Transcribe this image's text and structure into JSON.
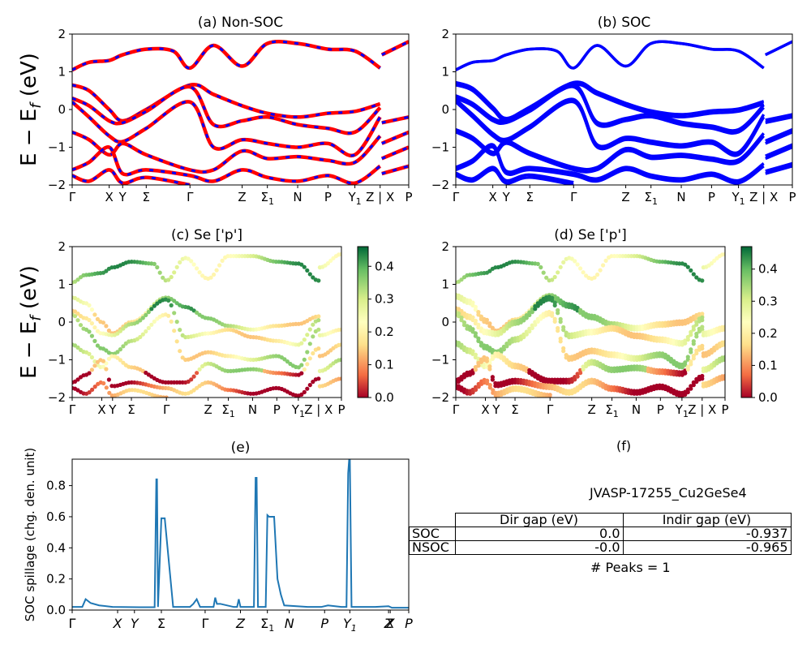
{
  "figure": {
    "ylabel_math": {
      "main": "E − E",
      "sub": "f",
      "unit": " (eV)"
    },
    "ylabel_spillage": "SOC spillage (chg. den. unit)",
    "colorbar_ticks": [
      "0.0",
      "0.1",
      "0.2",
      "0.3",
      "0.4"
    ],
    "colors": {
      "soc_blue": "#0000ff",
      "nonsoc_red": "#ff0000",
      "spillage_line": "#1f77b4"
    }
  },
  "chart_data": [
    {
      "type": "line",
      "title": "(a) Non-SOC",
      "ylim": [
        -2,
        2
      ],
      "yticks": [
        "2",
        "1",
        "0",
        "−1",
        "−2"
      ],
      "x_ticks": [
        "Γ",
        "X",
        "Y",
        "Σ",
        "Γ",
        "Z",
        "Σ1",
        "N",
        "P",
        "Y1",
        "Z | X",
        "P"
      ],
      "x_tick_pos": [
        0,
        0.11,
        0.15,
        0.22,
        0.35,
        0.505,
        0.58,
        0.67,
        0.76,
        0.84,
        0.915,
        1.0
      ],
      "series": [
        {
          "values": [
            [
              0,
              1.05
            ],
            [
              0.05,
              1.25
            ],
            [
              0.11,
              1.3
            ],
            [
              0.15,
              1.45
            ],
            [
              0.22,
              1.6
            ],
            [
              0.3,
              1.55
            ],
            [
              0.35,
              1.1
            ],
            [
              0.42,
              1.7
            ],
            [
              0.505,
              1.15
            ],
            [
              0.58,
              1.75
            ],
            [
              0.67,
              1.75
            ],
            [
              0.76,
              1.6
            ],
            [
              0.84,
              1.55
            ],
            [
              0.915,
              1.1
            ]
          ]
        },
        {
          "values": [
            [
              0.92,
              1.45
            ],
            [
              1.0,
              1.8
            ]
          ]
        },
        {
          "values": [
            [
              0,
              0.65
            ],
            [
              0.05,
              0.5
            ],
            [
              0.11,
              0.0
            ],
            [
              0.15,
              -0.3
            ],
            [
              0.22,
              0.0
            ],
            [
              0.35,
              0.65
            ],
            [
              0.42,
              0.4
            ],
            [
              0.505,
              0.1
            ],
            [
              0.58,
              -0.1
            ],
            [
              0.67,
              -0.2
            ],
            [
              0.76,
              -0.1
            ],
            [
              0.84,
              -0.05
            ],
            [
              0.915,
              0.15
            ]
          ]
        },
        {
          "values": [
            [
              0,
              0.3
            ],
            [
              0.05,
              0.1
            ],
            [
              0.11,
              -0.3
            ],
            [
              0.15,
              -0.35
            ],
            [
              0.22,
              -0.05
            ],
            [
              0.35,
              0.6
            ],
            [
              0.42,
              -0.4
            ],
            [
              0.505,
              -0.3
            ],
            [
              0.58,
              -0.2
            ],
            [
              0.67,
              -0.4
            ],
            [
              0.76,
              -0.5
            ],
            [
              0.84,
              -0.6
            ],
            [
              0.915,
              0.05
            ]
          ]
        },
        {
          "values": [
            [
              0,
              0.2
            ],
            [
              0.05,
              -0.2
            ],
            [
              0.11,
              -0.7
            ],
            [
              0.15,
              -0.85
            ],
            [
              0.22,
              -0.5
            ],
            [
              0.35,
              0.2
            ],
            [
              0.42,
              -1.0
            ],
            [
              0.505,
              -0.8
            ],
            [
              0.58,
              -0.9
            ],
            [
              0.67,
              -1.0
            ],
            [
              0.76,
              -0.9
            ],
            [
              0.84,
              -1.2
            ],
            [
              0.915,
              -0.2
            ]
          ]
        },
        {
          "values": [
            [
              0,
              -0.6
            ],
            [
              0.05,
              -0.8
            ],
            [
              0.11,
              -1.2
            ],
            [
              0.15,
              -0.9
            ],
            [
              0.22,
              -1.2
            ],
            [
              0.35,
              -1.6
            ],
            [
              0.42,
              -1.6
            ],
            [
              0.505,
              -1.1
            ],
            [
              0.58,
              -1.3
            ],
            [
              0.67,
              -1.25
            ],
            [
              0.76,
              -1.35
            ],
            [
              0.84,
              -1.4
            ],
            [
              0.915,
              -0.7
            ]
          ]
        },
        {
          "values": [
            [
              0,
              -1.6
            ],
            [
              0.05,
              -1.4
            ],
            [
              0.11,
              -1.0
            ],
            [
              0.15,
              -1.7
            ],
            [
              0.22,
              -1.6
            ],
            [
              0.35,
              -1.75
            ],
            [
              0.42,
              -1.9
            ],
            [
              0.505,
              -1.6
            ],
            [
              0.58,
              -1.8
            ],
            [
              0.67,
              -1.9
            ],
            [
              0.76,
              -1.75
            ],
            [
              0.84,
              -1.95
            ],
            [
              0.915,
              -1.5
            ]
          ]
        },
        {
          "values": [
            [
              0,
              -1.75
            ],
            [
              0.05,
              -1.9
            ],
            [
              0.11,
              -1.6
            ],
            [
              0.15,
              -1.95
            ],
            [
              0.22,
              -1.8
            ],
            [
              0.35,
              -2.0
            ]
          ]
        },
        {
          "values": [
            [
              0.92,
              -0.35
            ],
            [
              1.0,
              -0.2
            ]
          ]
        },
        {
          "values": [
            [
              0.92,
              -0.9
            ],
            [
              1.0,
              -0.6
            ]
          ]
        },
        {
          "values": [
            [
              0.92,
              -1.3
            ],
            [
              1.0,
              -1.0
            ]
          ]
        },
        {
          "values": [
            [
              0.92,
              -1.7
            ],
            [
              1.0,
              -1.5
            ]
          ]
        }
      ]
    },
    {
      "type": "line",
      "title": "(b) SOC",
      "ylim": [
        -2,
        2
      ],
      "yticks": [
        "2",
        "1",
        "0",
        "−1",
        "−2"
      ],
      "x_ticks": [
        "Γ",
        "X",
        "Y",
        "Σ",
        "Γ",
        "Z",
        "Σ1",
        "N",
        "P",
        "Y1",
        "Z | X",
        "P"
      ],
      "x_tick_pos": [
        0,
        0.11,
        0.15,
        0.22,
        0.35,
        0.505,
        0.58,
        0.67,
        0.76,
        0.84,
        0.915,
        1.0
      ]
    },
    {
      "type": "scatter",
      "title": "(c)  Se ['p']",
      "ylim": [
        -2,
        2
      ],
      "yticks": [
        "2",
        "1",
        "0",
        "−1",
        "−2"
      ],
      "x_ticks": [
        "Γ",
        "X",
        "Y",
        "Σ",
        "Γ",
        "Z",
        "Σ1",
        "N",
        "P",
        "Y1",
        "Z | X",
        "P"
      ],
      "x_tick_pos": [
        0,
        0.11,
        0.15,
        0.22,
        0.35,
        0.505,
        0.58,
        0.67,
        0.76,
        0.84,
        0.915,
        1.0
      ],
      "colorbar": {
        "min": 0.0,
        "max": 0.46,
        "ticks": [
          0.0,
          0.1,
          0.2,
          0.3,
          0.4
        ],
        "colormap": "RdYlGn"
      }
    },
    {
      "type": "scatter",
      "title": "(d) Se ['p']",
      "ylim": [
        -2,
        2
      ],
      "yticks": [
        "2",
        "1",
        "0",
        "−1",
        "−2"
      ],
      "x_ticks": [
        "Γ",
        "X",
        "Y",
        "Σ",
        "Γ",
        "Z",
        "Σ1",
        "N",
        "P",
        "Y1",
        "Z | X",
        "P"
      ],
      "x_tick_pos": [
        0,
        0.11,
        0.15,
        0.22,
        0.35,
        0.505,
        0.58,
        0.67,
        0.76,
        0.84,
        0.915,
        1.0
      ],
      "colorbar": {
        "min": 0.0,
        "max": 0.47,
        "ticks": [
          0.0,
          0.1,
          0.2,
          0.3,
          0.4
        ],
        "colormap": "RdYlGn"
      }
    },
    {
      "type": "line",
      "title": "(e)",
      "ylabel": "SOC spillage (chg. den. unit)",
      "ylim": [
        0,
        0.97
      ],
      "yticks": [
        "0.0",
        "0.2",
        "0.4",
        "0.6",
        "0.8"
      ],
      "ytick_vals": [
        0,
        0.2,
        0.4,
        0.6,
        0.8
      ],
      "x_ticks": [
        "Γ",
        "X",
        "Y",
        "Σ",
        "Γ",
        "Z",
        "Σ1",
        "N",
        "P",
        "Y1",
        "Z",
        "X",
        "P"
      ],
      "x_tick_pos": [
        0,
        0.135,
        0.185,
        0.265,
        0.395,
        0.5,
        0.58,
        0.645,
        0.75,
        0.825,
        0.94,
        0.945,
        1.0
      ],
      "x": [
        0,
        0.03,
        0.04,
        0.055,
        0.08,
        0.12,
        0.2,
        0.245,
        0.25,
        0.252,
        0.255,
        0.265,
        0.27,
        0.275,
        0.3,
        0.35,
        0.36,
        0.37,
        0.38,
        0.4,
        0.42,
        0.425,
        0.43,
        0.44,
        0.48,
        0.49,
        0.495,
        0.5,
        0.54,
        0.545,
        0.548,
        0.552,
        0.56,
        0.575,
        0.58,
        0.585,
        0.6,
        0.61,
        0.62,
        0.63,
        0.7,
        0.74,
        0.76,
        0.8,
        0.815,
        0.82,
        0.823,
        0.825,
        0.83,
        0.9,
        0.94,
        0.95,
        1.0
      ],
      "values": [
        0.02,
        0.02,
        0.07,
        0.045,
        0.03,
        0.02,
        0.018,
        0.018,
        0.84,
        0.84,
        0.02,
        0.59,
        0.59,
        0.59,
        0.02,
        0.02,
        0.04,
        0.07,
        0.02,
        0.02,
        0.02,
        0.08,
        0.04,
        0.04,
        0.02,
        0.02,
        0.07,
        0.02,
        0.02,
        0.85,
        0.85,
        0.02,
        0.02,
        0.02,
        0.61,
        0.6,
        0.6,
        0.2,
        0.1,
        0.03,
        0.02,
        0.02,
        0.03,
        0.02,
        0.02,
        0.88,
        0.97,
        0.97,
        0.02,
        0.02,
        0.025,
        0.015,
        0.015
      ]
    }
  ],
  "table_f": {
    "title": "(f)",
    "caption": "JVASP-17255_Cu2GeSe4",
    "header": [
      "",
      "Dir gap (eV)",
      "Indir gap (eV)"
    ],
    "rows": [
      [
        "SOC",
        "0.0",
        "-0.937"
      ],
      [
        "NSOC",
        "-0.0",
        "-0.965"
      ]
    ],
    "footer": "# Peaks = 1"
  }
}
